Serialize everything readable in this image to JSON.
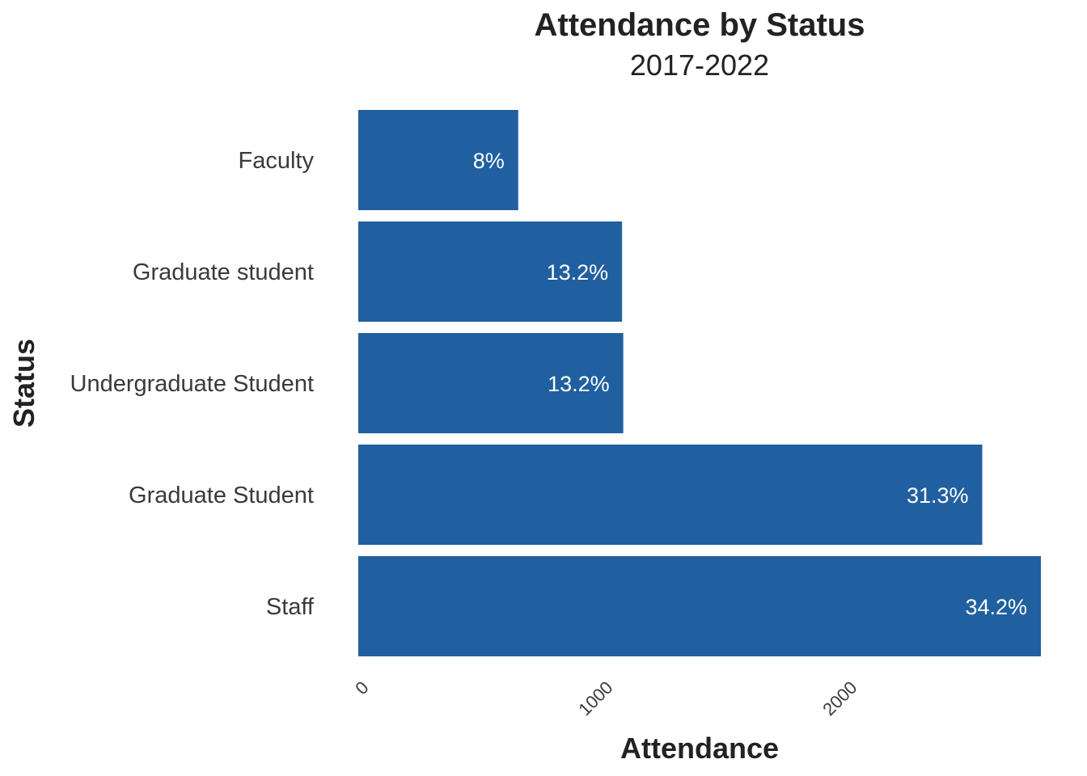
{
  "chart_data": {
    "type": "bar",
    "orientation": "horizontal",
    "title": "Attendance by Status",
    "subtitle": "2017-2022",
    "xlabel": "Attendance",
    "ylabel": "Status",
    "categories": [
      "Faculty",
      "Graduate student",
      "Undergraduate Student",
      "Graduate Student",
      "Staff"
    ],
    "values": [
      655,
      1080,
      1085,
      2555,
      2795
    ],
    "data_labels": [
      "8%",
      "13.2%",
      "13.2%",
      "31.3%",
      "34.2%"
    ],
    "x_ticks": [
      0,
      1000,
      2000
    ],
    "x_tick_labels": [
      "0",
      "1000",
      "2000"
    ],
    "xlim": [
      0,
      2795
    ],
    "bar_color": "#2160A0",
    "grid": false,
    "legend": "none"
  }
}
